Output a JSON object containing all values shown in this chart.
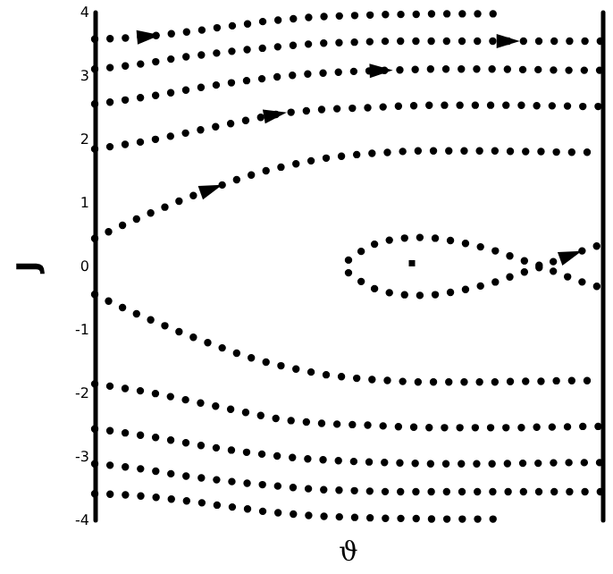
{
  "chart_data": {
    "type": "line",
    "line_style": "dotted",
    "xlabel": "ϑ",
    "ylabel": "J",
    "categories": [
      null,
      null,
      null,
      null,
      null,
      null,
      null,
      null,
      null,
      null,
      null,
      null,
      null,
      null,
      null,
      null,
      null,
      null,
      null,
      null,
      null,
      null,
      null,
      null,
      null
    ],
    "series": [
      {
        "color": "#000000",
        "values": [
          3.58,
          3.59,
          3.61,
          3.64,
          3.68,
          3.72,
          3.77,
          3.81,
          3.86,
          3.89,
          3.92,
          3.94,
          3.95,
          3.96,
          3.97,
          3.97,
          3.98,
          3.98,
          3.98,
          3.98,
          null,
          null,
          null,
          null,
          null
        ]
      },
      {
        "color": "#000000",
        "values": [
          3.11,
          3.14,
          3.18,
          3.23,
          3.29,
          3.33,
          3.37,
          3.41,
          3.44,
          3.47,
          3.5,
          3.52,
          3.53,
          3.54,
          3.55,
          3.55,
          3.55,
          3.55,
          3.55,
          3.55,
          3.55,
          3.55,
          3.55,
          3.55,
          3.55
        ]
      },
      {
        "color": "#000000",
        "values": [
          2.56,
          2.6,
          2.65,
          2.7,
          2.76,
          2.82,
          2.87,
          2.92,
          2.96,
          3.0,
          3.03,
          3.05,
          3.07,
          3.08,
          3.09,
          3.1,
          3.11,
          3.11,
          3.11,
          3.11,
          3.1,
          3.1,
          3.09,
          3.09,
          3.09
        ]
      },
      {
        "color": "#000000",
        "values": [
          1.85,
          1.9,
          1.95,
          2.01,
          2.08,
          2.15,
          2.22,
          2.29,
          2.36,
          2.42,
          2.45,
          2.48,
          2.49,
          2.5,
          2.52,
          2.53,
          2.54,
          2.54,
          2.54,
          2.54,
          2.54,
          2.53,
          2.53,
          2.52,
          2.52
        ]
      },
      {
        "color": "#000000",
        "values": [
          0.44,
          0.6,
          0.75,
          0.89,
          1.03,
          1.16,
          1.28,
          1.4,
          1.5,
          1.58,
          1.65,
          1.71,
          1.75,
          1.78,
          1.8,
          1.82,
          1.82,
          1.82,
          1.82,
          1.82,
          1.81,
          1.81,
          1.8,
          1.8,
          1.8
        ]
      },
      {
        "color": "#000000",
        "values": [
          -0.44,
          -0.6,
          -0.75,
          -0.89,
          -1.03,
          -1.16,
          -1.28,
          -1.4,
          -1.5,
          -1.58,
          -1.65,
          -1.71,
          -1.75,
          -1.78,
          -1.8,
          -1.82,
          -1.82,
          -1.82,
          -1.82,
          -1.82,
          -1.81,
          -1.81,
          -1.8,
          -1.8,
          -1.8
        ]
      },
      {
        "color": "#000000",
        "values": [
          -1.85,
          -1.9,
          -1.95,
          -2.01,
          -2.08,
          -2.15,
          -2.22,
          -2.29,
          -2.36,
          -2.42,
          -2.45,
          -2.48,
          -2.49,
          -2.5,
          -2.52,
          -2.53,
          -2.54,
          -2.54,
          -2.54,
          -2.54,
          -2.54,
          -2.53,
          -2.53,
          -2.52,
          -2.52
        ]
      },
      {
        "color": "#000000",
        "values": [
          -2.56,
          -2.6,
          -2.65,
          -2.7,
          -2.76,
          -2.82,
          -2.87,
          -2.92,
          -2.96,
          -3.0,
          -3.03,
          -3.05,
          -3.07,
          -3.08,
          -3.09,
          -3.1,
          -3.11,
          -3.11,
          -3.11,
          -3.11,
          -3.1,
          -3.1,
          -3.09,
          -3.09,
          -3.09
        ]
      },
      {
        "color": "#000000",
        "values": [
          -3.11,
          -3.14,
          -3.18,
          -3.23,
          -3.29,
          -3.33,
          -3.37,
          -3.41,
          -3.44,
          -3.47,
          -3.5,
          -3.52,
          -3.53,
          -3.54,
          -3.55,
          -3.55,
          -3.55,
          -3.55,
          -3.55,
          -3.55,
          -3.55,
          -3.55,
          -3.55,
          -3.55,
          -3.55
        ]
      },
      {
        "color": "#000000",
        "values": [
          -3.58,
          -3.59,
          -3.61,
          -3.64,
          -3.68,
          -3.72,
          -3.77,
          -3.81,
          -3.86,
          -3.89,
          -3.92,
          -3.94,
          -3.95,
          -3.96,
          -3.97,
          -3.97,
          -3.98,
          -3.98,
          -3.98,
          -3.98,
          null,
          null,
          null,
          null,
          null
        ]
      },
      {
        "color": "#000000",
        "values": [
          null,
          null,
          null,
          null,
          null,
          null,
          null,
          null,
          null,
          null,
          null,
          null,
          0.1,
          0.33,
          0.42,
          0.46,
          0.45,
          0.4,
          0.33,
          0.24,
          0.12,
          0.02,
          -0.12,
          -0.24,
          -0.34
        ]
      },
      {
        "color": "#000000",
        "values": [
          null,
          null,
          null,
          null,
          null,
          null,
          null,
          null,
          null,
          null,
          null,
          null,
          -0.1,
          -0.33,
          -0.42,
          -0.46,
          -0.45,
          -0.4,
          -0.33,
          -0.24,
          -0.12,
          -0.02,
          0.12,
          0.24,
          0.35
        ]
      },
      {
        "color": "#000000",
        "type": "scatter",
        "marker": "square",
        "values": [
          null,
          null,
          null,
          null,
          null,
          null,
          null,
          null,
          null,
          null,
          null,
          null,
          null,
          null,
          null,
          0.05,
          null,
          null,
          null,
          null,
          null,
          null,
          null,
          null,
          null
        ]
      }
    ],
    "ylim": [
      -4,
      4
    ],
    "yticks": [
      -4,
      -3,
      -2,
      -1,
      0,
      1,
      2,
      3,
      4
    ],
    "tick_labels": "y",
    "marker": "none",
    "grid": false,
    "legend": false
  }
}
